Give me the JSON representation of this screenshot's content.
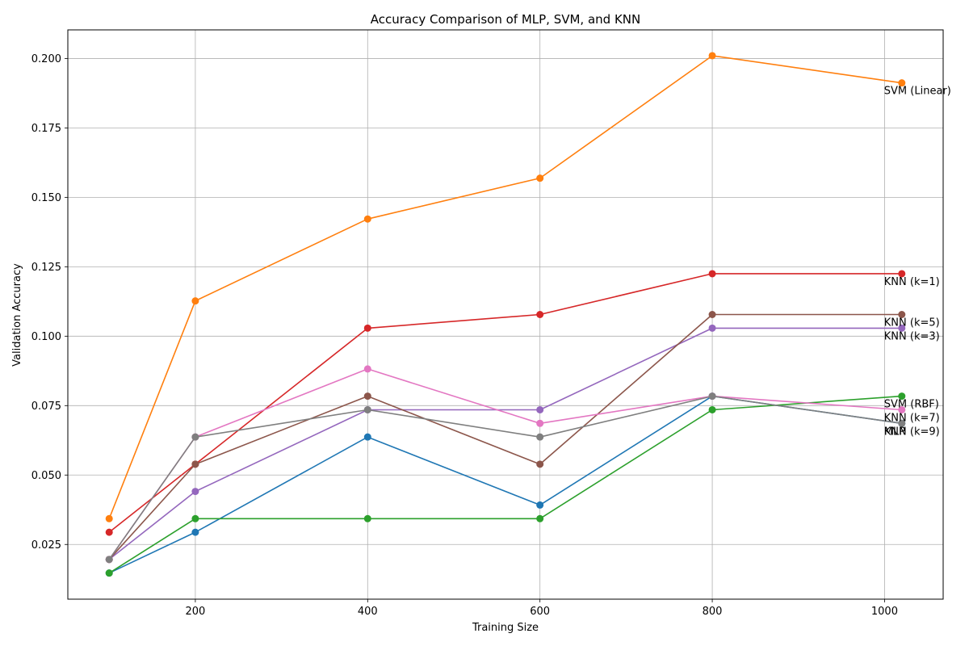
{
  "chart_data": {
    "type": "line",
    "title": "Accuracy Comparison of MLP, SVM, and KNN",
    "xlabel": "Training Size",
    "ylabel": "Validation Accuracy",
    "xlim": [
      52,
      1068
    ],
    "ylim": [
      0.0053,
      0.2103
    ],
    "xticks": [
      200,
      400,
      600,
      800,
      1000
    ],
    "yticks": [
      0.025,
      0.05,
      0.075,
      0.1,
      0.125,
      0.15,
      0.175,
      0.2
    ],
    "grid": true,
    "x": [
      100,
      200,
      400,
      600,
      800,
      1020
    ],
    "series": [
      {
        "name": "MLP",
        "color": "#1f77b4",
        "values": [
          0.0147,
          0.0294,
          0.0637,
          0.0392,
          0.0784,
          0.0686
        ]
      },
      {
        "name": "SVM (Linear)",
        "color": "#ff7f0e",
        "values": [
          0.0343,
          0.1127,
          0.1422,
          0.1569,
          0.201,
          0.1912
        ]
      },
      {
        "name": "SVM (RBF)",
        "color": "#2ca02c",
        "values": [
          0.0147,
          0.0343,
          0.0343,
          0.0343,
          0.0735,
          0.0784
        ]
      },
      {
        "name": "KNN (k=1)",
        "color": "#d62728",
        "values": [
          0.0294,
          0.0539,
          0.1029,
          0.1078,
          0.1225,
          0.1225
        ]
      },
      {
        "name": "KNN (k=3)",
        "color": "#9467bd",
        "values": [
          0.0196,
          0.0441,
          0.0735,
          0.0735,
          0.1029,
          0.1029
        ]
      },
      {
        "name": "KNN (k=5)",
        "color": "#8c564b",
        "values": [
          0.0196,
          0.0539,
          0.0784,
          0.0539,
          0.1078,
          0.1078
        ]
      },
      {
        "name": "KNN (k=7)",
        "color": "#e377c2",
        "values": [
          0.0196,
          0.0637,
          0.0882,
          0.0686,
          0.0784,
          0.0735
        ]
      },
      {
        "name": "KNN (k=9)",
        "color": "#7f7f7f",
        "values": [
          0.0196,
          0.0637,
          0.0735,
          0.0637,
          0.0784,
          0.0686
        ]
      }
    ]
  }
}
